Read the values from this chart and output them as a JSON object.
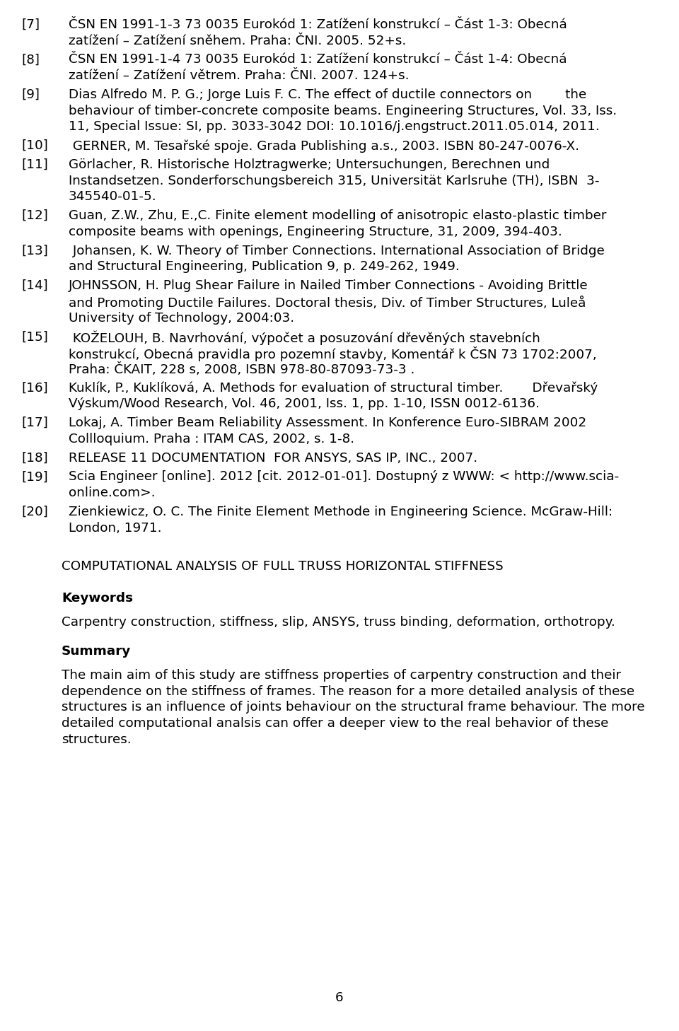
{
  "background_color": "#ffffff",
  "text_color": "#000000",
  "page_number": "6",
  "references": [
    {
      "number": "[7]",
      "lines": [
        "ČSN EN 1991-1-3 73 0035 Eurokód 1: Zatížení konstrukcí – Část 1-3: Obecná",
        "zatížení – Zatížení sněhem. Praha: ČNI. 2005. 52+s."
      ]
    },
    {
      "number": "[8]",
      "lines": [
        "ČSN EN 1991-1-4 73 0035 Eurokód 1: Zatížení konstrukcí – Část 1-4: Obecná",
        "zatížení – Zatížení větrem. Praha: ČNI. 2007. 124+s."
      ]
    },
    {
      "number": "[9]",
      "lines": [
        "Dias Alfredo M. P. G.; Jorge Luis F. C. The effect of ductile connectors on        the",
        "behaviour of timber-concrete composite beams. Engineering Structures, Vol. 33, Iss.",
        "11, Special Issue: SI, pp. 3033-3042 DOI: 10.1016/j.engstruct.2011.05.014, 2011."
      ]
    },
    {
      "number": "[10]",
      "lines": [
        " GERNER, M. Tesařské spoje. Grada Publishing a.s., 2003. ISBN 80-247-0076-X."
      ]
    },
    {
      "number": "[11]",
      "lines": [
        "Görlacher, R. Historische Holztragwerke; Untersuchungen, Berechnen und",
        "Instandsetzen. Sonderforschungsbereich 315, Universität Karlsruhe (TH), ISBN  3-",
        "345540-01-5."
      ]
    },
    {
      "number": "[12]",
      "lines": [
        "Guan, Z.W., Zhu, E.,C. Finite element modelling of anisotropic elasto-plastic timber",
        "composite beams with openings, Engineering Structure, 31, 2009, 394-403."
      ]
    },
    {
      "number": "[13]",
      "lines": [
        " Johansen, K. W. Theory of Timber Connections. International Association of Bridge",
        "and Structural Engineering, Publication 9, p. 249-262, 1949."
      ]
    },
    {
      "number": "[14]",
      "lines": [
        "JOHNSSON, H. Plug Shear Failure in Nailed Timber Connections - Avoiding Brittle",
        "and Promoting Ductile Failures. Doctoral thesis, Div. of Timber Structures, Luleå",
        "University of Technology, 2004:03."
      ]
    },
    {
      "number": "[15]",
      "lines": [
        " KOŽELOUH, B. Navrhování, výpočet a posuzování dřevěných stavebních",
        "konstrukcí, Obecná pravidla pro pozemní stavby, Komentář k ČSN 73 1702:2007,",
        "Praha: ČKAIT, 228 s, 2008, ISBN 978-80-87093-73-3 ."
      ]
    },
    {
      "number": "[16]",
      "lines": [
        "Kuklík, P., Kuklíková, A. Methods for evaluation of structural timber.       Dřevařský",
        "Výskum/Wood Research, Vol. 46, 2001, Iss. 1, pp. 1-10, ISSN 0012-6136."
      ]
    },
    {
      "number": "[17]",
      "lines": [
        "Lokaj, A. Timber Beam Reliability Assessment. In Konference Euro-SIBRAM 2002",
        "Collloquium. Praha : ITAM CAS, 2002, s. 1-8."
      ]
    },
    {
      "number": "[18]",
      "lines": [
        "RELEASE 11 DOCUMENTATION  FOR ANSYS, SAS IP, INC., 2007."
      ]
    },
    {
      "number": "[19]",
      "lines": [
        "Scia Engineer [online]. 2012 [cit. 2012-01-01]. Dostupný z WWW: < http://www.scia-",
        "online.com>."
      ]
    },
    {
      "number": "[20]",
      "lines": [
        "Zienkiewicz, O. C. The Finite Element Methode in Engineering Science. McGraw-Hill:",
        "London, 1971."
      ]
    }
  ],
  "section_title": "COMPUTATIONAL ANALYSIS OF FULL TRUSS HORIZONTAL STIFFNESS",
  "keywords_label": "Keywords",
  "keywords_text": "Carpentry construction, stiffness, slip, ANSYS, truss binding, deformation, orthotropy.",
  "summary_label": "Summary",
  "summary_lines": [
    "The main aim of this study are stiffness properties of carpentry construction and their",
    "dependence on the stiffness of frames. The reason for a more detailed analysis of these",
    "structures is an influence of joints behaviour on the structural frame behaviour. The more",
    "detailed computational analsis can offer a deeper view to the real behavior of these",
    "structures."
  ]
}
